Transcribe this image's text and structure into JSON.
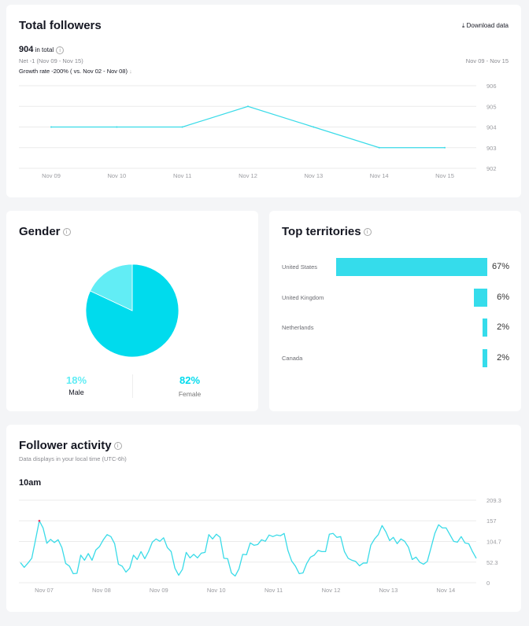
{
  "followers": {
    "title": "Total followers",
    "download_label": "Download data",
    "total": "904",
    "total_suffix": "in total",
    "net": "Net -1 (Nov 09 - Nov 15)",
    "growth": "Growth rate -200% ( vs. Nov 02 - Nov 08)",
    "date_range": "Nov 09 - Nov 15",
    "accent": "#3adbe8",
    "chart_data": {
      "type": "line",
      "categories": [
        "Nov 09",
        "Nov 10",
        "Nov 11",
        "Nov 12",
        "Nov 13",
        "Nov 14",
        "Nov 15"
      ],
      "values": [
        904,
        904,
        904,
        905,
        904,
        903,
        903
      ],
      "yticks": [
        "906",
        "905",
        "904",
        "903",
        "902"
      ],
      "ylim": [
        902,
        906
      ],
      "grid": true
    }
  },
  "gender": {
    "title": "Gender",
    "male_pct": "18%",
    "male_label": "Male",
    "female_pct": "82%",
    "female_label": "Female",
    "chart_data": {
      "type": "pie",
      "slices": [
        {
          "name": "Male",
          "value": 18,
          "color": "#62edf5"
        },
        {
          "name": "Female",
          "value": 82,
          "color": "#00dbed"
        }
      ]
    }
  },
  "territories": {
    "title": "Top territories",
    "chart_data": {
      "type": "bar",
      "categories": [
        "United States",
        "United Kingdom",
        "Netherlands",
        "Canada"
      ],
      "values": [
        67,
        6,
        2,
        2
      ],
      "labels": [
        "67%",
        "6%",
        "2%",
        "2%"
      ],
      "color": "#35dceb"
    }
  },
  "activity": {
    "title": "Follower activity",
    "subtitle": "Data displays in your local time (UTC-6h)",
    "selected_time": "10am",
    "chart_data": {
      "type": "line",
      "xticks": [
        "Nov 07",
        "Nov 08",
        "Nov 09",
        "Nov 10",
        "Nov 11",
        "Nov 12",
        "Nov 13",
        "Nov 14"
      ],
      "yticks": [
        "209.3",
        "157",
        "104.7",
        "52.3",
        "0"
      ],
      "ylim": [
        0,
        209.3
      ],
      "grid": true,
      "values": [
        51,
        39,
        50,
        62,
        109,
        157,
        139,
        100,
        110,
        102,
        109,
        89,
        49,
        42,
        23,
        24,
        70,
        57,
        74,
        57,
        83,
        92,
        109,
        122,
        117,
        99,
        47,
        42,
        27,
        37,
        70,
        59,
        79,
        61,
        79,
        103,
        111,
        105,
        114,
        89,
        79,
        37,
        19,
        34,
        77,
        63,
        72,
        63,
        75,
        77,
        122,
        111,
        123,
        115,
        62,
        61,
        25,
        17,
        35,
        72,
        71,
        101,
        95,
        97,
        109,
        105,
        121,
        117,
        121,
        119,
        125,
        82,
        55,
        42,
        23,
        25,
        49,
        65,
        70,
        82,
        79,
        79,
        123,
        125,
        115,
        117,
        79,
        62,
        57,
        54,
        43,
        50,
        50,
        95,
        111,
        122,
        145,
        129,
        107,
        115,
        99,
        111,
        105,
        90,
        59,
        65,
        52,
        47,
        54,
        89,
        125,
        147,
        139,
        139,
        122,
        105,
        103,
        117,
        101,
        99,
        79,
        62
      ]
    }
  }
}
